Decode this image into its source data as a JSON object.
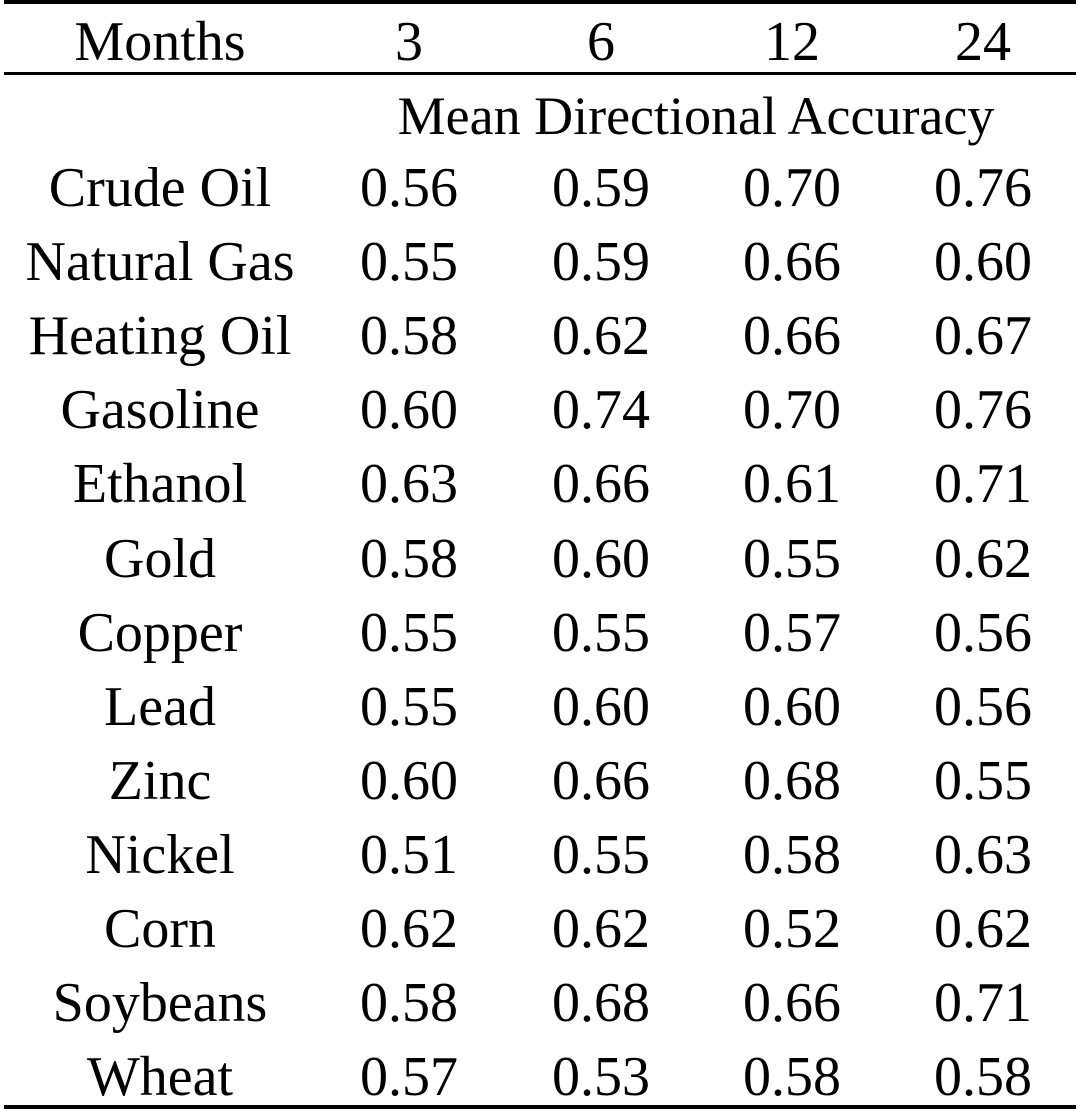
{
  "table": {
    "header": {
      "label": "Months",
      "columns": [
        "3",
        "6",
        "12",
        "24"
      ]
    },
    "subheader": "Mean Directional Accuracy",
    "rows": [
      {
        "name": "Crude Oil",
        "values": [
          "0.56",
          "0.59",
          "0.70",
          "0.76"
        ]
      },
      {
        "name": "Natural Gas",
        "values": [
          "0.55",
          "0.59",
          "0.66",
          "0.60"
        ]
      },
      {
        "name": "Heating Oil",
        "values": [
          "0.58",
          "0.62",
          "0.66",
          "0.67"
        ]
      },
      {
        "name": "Gasoline",
        "values": [
          "0.60",
          "0.74",
          "0.70",
          "0.76"
        ]
      },
      {
        "name": "Ethanol",
        "values": [
          "0.63",
          "0.66",
          "0.61",
          "0.71"
        ]
      },
      {
        "name": "Gold",
        "values": [
          "0.58",
          "0.60",
          "0.55",
          "0.62"
        ]
      },
      {
        "name": "Copper",
        "values": [
          "0.55",
          "0.55",
          "0.57",
          "0.56"
        ]
      },
      {
        "name": "Lead",
        "values": [
          "0.55",
          "0.60",
          "0.60",
          "0.56"
        ]
      },
      {
        "name": "Zinc",
        "values": [
          "0.60",
          "0.66",
          "0.68",
          "0.55"
        ]
      },
      {
        "name": "Nickel",
        "values": [
          "0.51",
          "0.55",
          "0.58",
          "0.63"
        ]
      },
      {
        "name": "Corn",
        "values": [
          "0.62",
          "0.62",
          "0.52",
          "0.62"
        ]
      },
      {
        "name": "Soybeans",
        "values": [
          "0.58",
          "0.68",
          "0.66",
          "0.71"
        ]
      },
      {
        "name": "Wheat",
        "values": [
          "0.57",
          "0.53",
          "0.58",
          "0.58"
        ]
      }
    ]
  }
}
